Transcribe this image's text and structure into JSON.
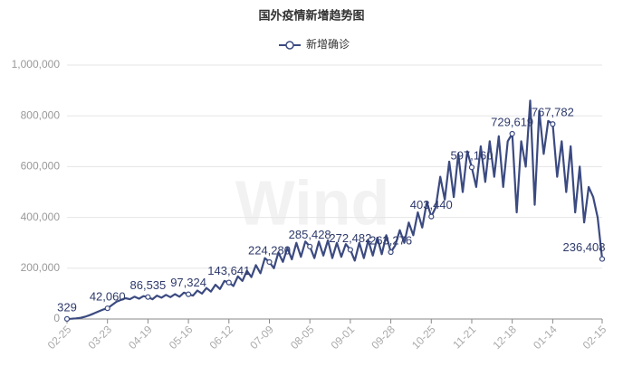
{
  "chart_data": {
    "type": "line",
    "title": "国外疫情新增趋势图",
    "watermark": "Wind",
    "series": [
      {
        "name": "新增确诊",
        "color": "#3b4a80",
        "values": [
          329,
          1200,
          2500,
          4800,
          9000,
          15000,
          22000,
          30000,
          37000,
          42060,
          55000,
          68000,
          75000,
          82000,
          78000,
          88000,
          80000,
          90000,
          86535,
          78000,
          92000,
          84000,
          95000,
          86000,
          98000,
          88000,
          104000,
          97324,
          92000,
          112000,
          100000,
          122000,
          108000,
          135000,
          118000,
          150000,
          143641,
          130000,
          168000,
          150000,
          190000,
          165000,
          212000,
          180000,
          240000,
          224280,
          200000,
          262000,
          225000,
          280000,
          235000,
          300000,
          245000,
          305000,
          285428,
          240000,
          305000,
          250000,
          310000,
          240000,
          300000,
          245000,
          295000,
          272482,
          230000,
          300000,
          240000,
          310000,
          250000,
          320000,
          255000,
          330000,
          263276,
          290000,
          350000,
          300000,
          380000,
          330000,
          420000,
          360000,
          460000,
          403440,
          440000,
          560000,
          470000,
          620000,
          480000,
          650000,
          500000,
          660000,
          597160,
          520000,
          680000,
          540000,
          700000,
          560000,
          720000,
          520000,
          700000,
          729619,
          420000,
          700000,
          600000,
          860000,
          450000,
          820000,
          650000,
          780000,
          767782,
          560000,
          700000,
          500000,
          680000,
          420000,
          600000,
          380000,
          520000,
          480000,
          400000,
          236408
        ],
        "value_labels": [
          "329",
          null,
          null,
          null,
          null,
          null,
          null,
          null,
          null,
          "42,060",
          null,
          null,
          null,
          null,
          null,
          null,
          null,
          null,
          "86,535",
          null,
          null,
          null,
          null,
          null,
          null,
          null,
          null,
          "97,324",
          null,
          null,
          null,
          null,
          null,
          null,
          null,
          null,
          "143,641",
          null,
          null,
          null,
          null,
          null,
          null,
          null,
          null,
          "224,280",
          null,
          null,
          null,
          null,
          null,
          null,
          null,
          null,
          "285,428",
          null,
          null,
          null,
          null,
          null,
          null,
          null,
          null,
          "272,482",
          null,
          null,
          null,
          null,
          null,
          null,
          null,
          null,
          "263,276",
          null,
          null,
          null,
          null,
          null,
          null,
          null,
          null,
          "403,440",
          null,
          null,
          null,
          null,
          null,
          null,
          null,
          null,
          "597,160",
          null,
          null,
          null,
          null,
          null,
          null,
          null,
          null,
          "729,619",
          null,
          null,
          null,
          null,
          null,
          null,
          null,
          null,
          "767,782",
          null,
          null,
          null,
          null,
          null,
          null,
          null,
          null,
          null,
          null,
          "236,408"
        ]
      }
    ],
    "categories": [
      "02-25",
      null,
      null,
      null,
      null,
      null,
      null,
      null,
      null,
      "03-23",
      null,
      null,
      null,
      null,
      null,
      null,
      null,
      null,
      "04-19",
      null,
      null,
      null,
      null,
      null,
      null,
      null,
      null,
      "05-16",
      null,
      null,
      null,
      null,
      null,
      null,
      null,
      null,
      "06-12",
      null,
      null,
      null,
      null,
      null,
      null,
      null,
      null,
      "07-09",
      null,
      null,
      null,
      null,
      null,
      null,
      null,
      null,
      "08-05",
      null,
      null,
      null,
      null,
      null,
      null,
      null,
      null,
      "09-01",
      null,
      null,
      null,
      null,
      null,
      null,
      null,
      null,
      "09-28",
      null,
      null,
      null,
      null,
      null,
      null,
      null,
      null,
      "10-25",
      null,
      null,
      null,
      null,
      null,
      null,
      null,
      null,
      "11-21",
      null,
      null,
      null,
      null,
      null,
      null,
      null,
      null,
      "12-18",
      null,
      null,
      null,
      null,
      null,
      null,
      null,
      null,
      "01-14",
      null,
      null,
      null,
      null,
      null,
      null,
      null,
      null,
      null,
      null,
      "02-15"
    ],
    "ylim": [
      0,
      1000000
    ],
    "yticks": [
      0,
      {
        "value": 200000,
        "label": "200,000"
      },
      {
        "value": 400000,
        "label": "400,000"
      },
      {
        "value": 600000,
        "label": "600,000"
      },
      {
        "value": 800000,
        "label": "800,000"
      },
      {
        "value": 1000000,
        "label": "1,000,000"
      }
    ],
    "grid": true
  }
}
